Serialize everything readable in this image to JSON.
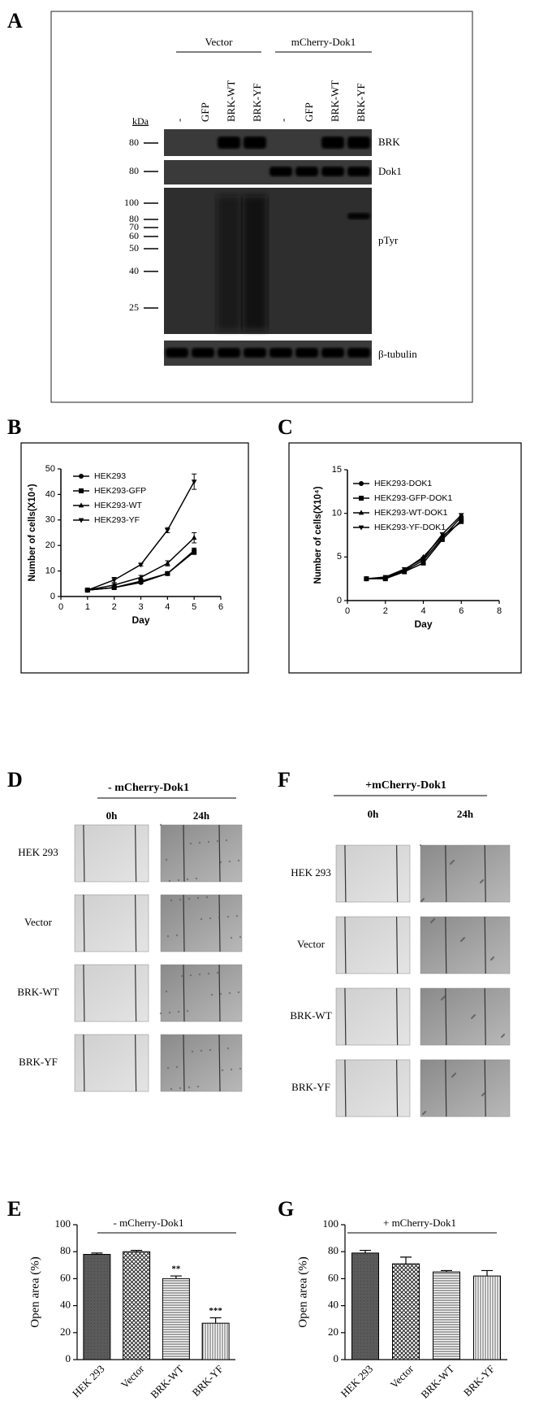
{
  "panel_a": {
    "label": "A",
    "groups": [
      "Vector",
      "mCherry-Dok1"
    ],
    "lanes": [
      "-",
      "GFP",
      "BRK-WT",
      "BRK-YF",
      "-",
      "GFP",
      "BRK-WT",
      "BRK-YF"
    ],
    "kda": "kDa",
    "blots": [
      {
        "name": "BRK",
        "markers": [
          80
        ]
      },
      {
        "name": "Dok1",
        "markers": [
          80
        ]
      },
      {
        "name": "pTyr",
        "markers": [
          100,
          80,
          70,
          60,
          50,
          40,
          25
        ]
      },
      {
        "name": "β-tubulin"
      }
    ]
  },
  "chart_data": [
    {
      "type": "line",
      "label": "B",
      "xlabel": "Day",
      "ylabel": "Number of cells(X10⁴)",
      "x": [
        1,
        2,
        3,
        4,
        5
      ],
      "xlim": [
        0,
        6
      ],
      "xticks": [
        0,
        1,
        2,
        3,
        4,
        5,
        6
      ],
      "ylim": [
        0,
        50
      ],
      "yticks": [
        0,
        10,
        20,
        30,
        40,
        50
      ],
      "series": [
        {
          "name": "HEK293",
          "color": "#000000",
          "marker": "circle",
          "values": [
            2.5,
            3.5,
            5.5,
            9,
            18
          ],
          "errors": [
            0.3,
            0.5,
            0.5,
            0.5,
            1
          ]
        },
        {
          "name": "HEK293-GFP",
          "color": "#000000",
          "marker": "square",
          "values": [
            2.5,
            3.5,
            6,
            9,
            17.5
          ],
          "errors": [
            0.3,
            0.3,
            0.5,
            0.5,
            1
          ]
        },
        {
          "name": "HEK293-WT",
          "color": "#000000",
          "marker": "triangle-up",
          "values": [
            2.5,
            4.5,
            7.5,
            13,
            23
          ],
          "errors": [
            0.3,
            0.5,
            0.8,
            1,
            2
          ]
        },
        {
          "name": "HEK293-YF",
          "color": "#000000",
          "marker": "triangle-down",
          "values": [
            2.5,
            6.5,
            12.5,
            26,
            45
          ],
          "errors": [
            0.3,
            1,
            0.5,
            1,
            3
          ]
        }
      ]
    },
    {
      "type": "line",
      "label": "C",
      "xlabel": "Day",
      "ylabel": "Number of cells(X10⁴)",
      "x": [
        1,
        2,
        3,
        4,
        5,
        6
      ],
      "xlim": [
        0,
        8
      ],
      "xticks": [
        0,
        2,
        4,
        6,
        8
      ],
      "ylim": [
        0,
        15
      ],
      "yticks": [
        0,
        5,
        10,
        15
      ],
      "series": [
        {
          "name": "HEK293-DOK1",
          "color": "#000000",
          "marker": "circle",
          "values": [
            2.5,
            2.6,
            3.4,
            4.6,
            7.2,
            9.6
          ]
        },
        {
          "name": "HEK293-GFP-DOK1",
          "color": "#000000",
          "marker": "square",
          "values": [
            2.5,
            2.5,
            3.3,
            4.3,
            7.0,
            9.2
          ]
        },
        {
          "name": "HEK293-WT-DOK1",
          "color": "#000000",
          "marker": "triangle-up",
          "values": [
            2.5,
            2.6,
            3.5,
            5.0,
            7.4,
            9.0
          ]
        },
        {
          "name": "HEK293-YF-DOK1",
          "color": "#000000",
          "marker": "triangle-down",
          "values": [
            2.5,
            2.7,
            3.6,
            4.8,
            7.6,
            9.8
          ]
        }
      ]
    },
    {
      "type": "bar",
      "label": "E",
      "header": "- mCherry-Dok1",
      "ylabel": "Open area (%)",
      "categories": [
        "HEK 293",
        "Vector",
        "BRK-WT",
        "BRK-YF"
      ],
      "values": [
        78,
        80,
        60,
        27
      ],
      "errors": [
        1,
        1,
        2,
        4
      ],
      "annotations": [
        null,
        null,
        "**",
        "***"
      ],
      "patterns": [
        "solid",
        "crosshatch",
        "horizontal",
        "vertical"
      ],
      "ylim": [
        0,
        100
      ],
      "yticks": [
        0,
        20,
        40,
        60,
        80,
        100
      ]
    },
    {
      "type": "bar",
      "label": "G",
      "header": "+ mCherry-Dok1",
      "ylabel": "Open area (%)",
      "categories": [
        "HEK 293",
        "Vector",
        "BRK-WT",
        "BRK-YF"
      ],
      "values": [
        79,
        71,
        65,
        62
      ],
      "errors": [
        2,
        5,
        1,
        4
      ],
      "patterns": [
        "solid",
        "crosshatch",
        "horizontal",
        "vertical"
      ],
      "ylim": [
        0,
        100
      ],
      "yticks": [
        0,
        20,
        40,
        60,
        80,
        100
      ]
    }
  ],
  "scratch_panels": [
    {
      "label": "D",
      "header": "- mCherry-Dok1",
      "columns": [
        "0h",
        "24h"
      ],
      "rows": [
        "HEK 293",
        "Vector",
        "BRK-WT",
        "BRK-YF"
      ]
    },
    {
      "label": "F",
      "header": "+mCherry-Dok1",
      "columns": [
        "0h",
        "24h"
      ],
      "rows": [
        "HEK 293",
        "Vector",
        "BRK-WT",
        "BRK-YF"
      ]
    }
  ]
}
